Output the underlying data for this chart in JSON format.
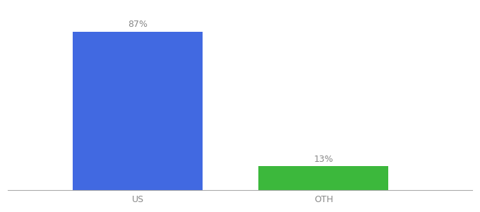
{
  "categories": [
    "US",
    "OTH"
  ],
  "values": [
    87,
    13
  ],
  "bar_colors": [
    "#4169E1",
    "#3CB83C"
  ],
  "labels": [
    "87%",
    "13%"
  ],
  "background_color": "#ffffff",
  "label_fontsize": 9,
  "tick_fontsize": 9,
  "label_color": "#888888",
  "tick_color": "#888888",
  "ylim": [
    0,
    100
  ],
  "bar_width": 0.28,
  "x_positions": [
    0.28,
    0.68
  ],
  "xlim": [
    0.0,
    1.0
  ]
}
